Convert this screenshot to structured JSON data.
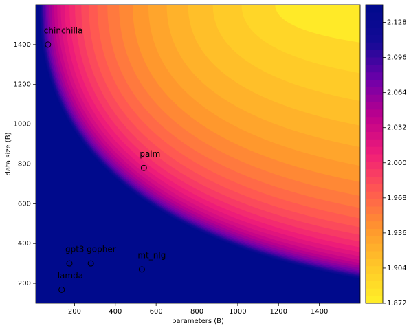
{
  "chart_data": {
    "type": "scatter",
    "x_label": "parameters (B)",
    "y_label": "data size (B)",
    "x": [
      70,
      540,
      175,
      280,
      530,
      137
    ],
    "values": [
      1400,
      780,
      300,
      300,
      270,
      168
    ],
    "labels": [
      "chinchilla",
      "palm",
      "gpt3",
      "gopher",
      "mt_nlg",
      "lamda"
    ],
    "marker_color": "#000000",
    "xlim": [
      10,
      1600
    ],
    "xticks": [
      200,
      400,
      600,
      800,
      1000,
      1200,
      1400
    ],
    "ylim": [
      100,
      1600
    ],
    "yticks": [
      200,
      400,
      600,
      800,
      1000,
      1200,
      1400
    ],
    "colorbar_lim": [
      1.872,
      2.144
    ],
    "colorbar_ticks": [
      1.872,
      1.904,
      1.936,
      1.968,
      2.0,
      2.032,
      2.064,
      2.096,
      2.128
    ]
  }
}
